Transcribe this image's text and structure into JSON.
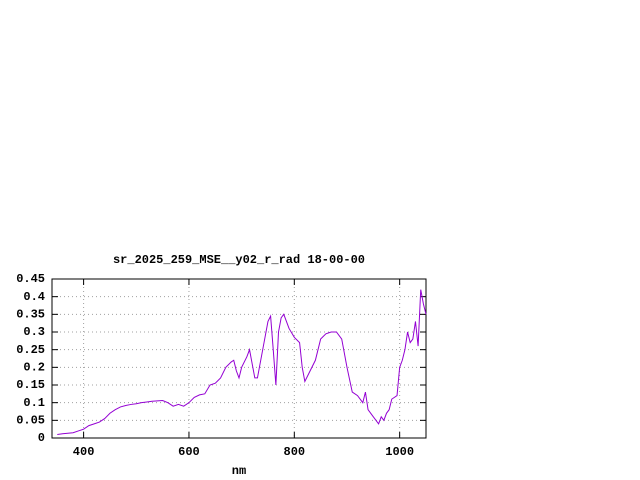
{
  "chart_data": {
    "type": "line",
    "title": "sr_2025_259_MSE__y02_r_rad 18-00-00",
    "x_label": "nm",
    "x": [
      350,
      360,
      380,
      390,
      400,
      410,
      420,
      430,
      440,
      450,
      460,
      470,
      480,
      490,
      500,
      510,
      520,
      530,
      540,
      550,
      560,
      570,
      580,
      590,
      600,
      610,
      620,
      630,
      640,
      650,
      660,
      670,
      680,
      685,
      690,
      695,
      700,
      710,
      715,
      720,
      725,
      730,
      740,
      750,
      755,
      760,
      765,
      770,
      775,
      780,
      790,
      800,
      810,
      815,
      820,
      830,
      840,
      850,
      860,
      870,
      880,
      890,
      900,
      910,
      920,
      930,
      935,
      940,
      950,
      955,
      960,
      965,
      970,
      975,
      980,
      985,
      990,
      995,
      1000,
      1005,
      1010,
      1015,
      1020,
      1025,
      1030,
      1035,
      1040,
      1045,
      1050
    ],
    "series": [
      {
        "color": "#9400d3",
        "values": [
          0.01,
          0.012,
          0.015,
          0.02,
          0.025,
          0.035,
          0.04,
          0.045,
          0.055,
          0.07,
          0.08,
          0.088,
          0.092,
          0.095,
          0.097,
          0.1,
          0.102,
          0.104,
          0.105,
          0.106,
          0.1,
          0.09,
          0.095,
          0.09,
          0.1,
          0.115,
          0.122,
          0.125,
          0.15,
          0.155,
          0.17,
          0.2,
          0.215,
          0.22,
          0.19,
          0.17,
          0.2,
          0.23,
          0.25,
          0.21,
          0.17,
          0.17,
          0.25,
          0.33,
          0.345,
          0.25,
          0.15,
          0.3,
          0.34,
          0.35,
          0.31,
          0.285,
          0.27,
          0.2,
          0.16,
          0.19,
          0.22,
          0.28,
          0.295,
          0.3,
          0.3,
          0.28,
          0.2,
          0.13,
          0.12,
          0.1,
          0.13,
          0.08,
          0.06,
          0.05,
          0.04,
          0.06,
          0.05,
          0.07,
          0.08,
          0.11,
          0.115,
          0.12,
          0.2,
          0.22,
          0.25,
          0.3,
          0.27,
          0.28,
          0.33,
          0.26,
          0.42,
          0.38,
          0.35
        ]
      }
    ],
    "xlim": [
      340,
      1050
    ],
    "xticks": [
      400,
      600,
      800,
      1000
    ],
    "ylim": [
      0,
      0.45
    ],
    "yticks": [
      0,
      0.05,
      0.1,
      0.15,
      0.2,
      0.25,
      0.3,
      0.35,
      0.4,
      0.45
    ],
    "grid": true
  }
}
